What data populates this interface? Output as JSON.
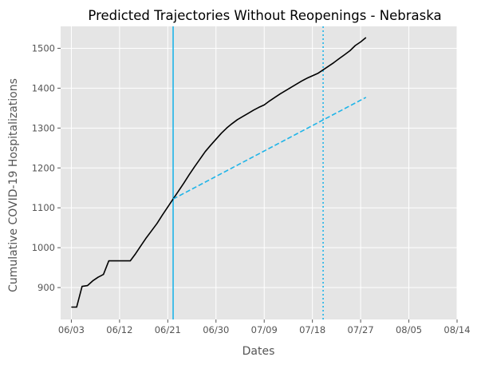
{
  "chart_data": {
    "type": "line",
    "title": "Predicted Trajectories Without Reopenings - Nebraska",
    "xlabel": "Dates",
    "ylabel": "Cumulative COVID-19 Hospitalizations",
    "x_tick_labels": [
      "06/03",
      "06/12",
      "06/21",
      "06/30",
      "07/09",
      "07/18",
      "07/27",
      "08/05",
      "08/14"
    ],
    "x_tick_days": [
      0,
      9,
      18,
      27,
      36,
      45,
      54,
      63,
      72
    ],
    "x_range_days": [
      -2,
      72
    ],
    "y_ticks": [
      900,
      1000,
      1100,
      1200,
      1300,
      1400,
      1500
    ],
    "y_range": [
      820,
      1555
    ],
    "grid": true,
    "colors": {
      "background": "#e5e5e5",
      "grid": "#ffffff",
      "actual": "#000000",
      "predicted": "#1fb4e8",
      "vlines": "#1fb4e8"
    },
    "series": [
      {
        "style": "solid",
        "color": "#000000",
        "points": [
          [
            0,
            851
          ],
          [
            1,
            851
          ],
          [
            2,
            903
          ],
          [
            3,
            905
          ],
          [
            4,
            917
          ],
          [
            5,
            926
          ],
          [
            6,
            933
          ],
          [
            7,
            967
          ],
          [
            8,
            967
          ],
          [
            9,
            967
          ],
          [
            10,
            967
          ],
          [
            11,
            967
          ],
          [
            12,
            985
          ],
          [
            13,
            1005
          ],
          [
            14,
            1025
          ],
          [
            15,
            1043
          ],
          [
            16,
            1061
          ],
          [
            17,
            1082
          ],
          [
            18,
            1102
          ],
          [
            19,
            1122
          ],
          [
            20,
            1142
          ],
          [
            21,
            1162
          ],
          [
            22,
            1183
          ],
          [
            23,
            1203
          ],
          [
            24,
            1222
          ],
          [
            25,
            1241
          ],
          [
            26,
            1257
          ],
          [
            27,
            1272
          ],
          [
            28,
            1287
          ],
          [
            29,
            1300
          ],
          [
            30,
            1311
          ],
          [
            31,
            1321
          ],
          [
            32,
            1329
          ],
          [
            33,
            1337
          ],
          [
            34,
            1345
          ],
          [
            35,
            1352
          ],
          [
            36,
            1358
          ],
          [
            37,
            1368
          ],
          [
            38,
            1377
          ],
          [
            39,
            1386
          ],
          [
            40,
            1394
          ],
          [
            41,
            1402
          ],
          [
            42,
            1410
          ],
          [
            43,
            1418
          ],
          [
            44,
            1425
          ],
          [
            45,
            1431
          ],
          [
            46,
            1437
          ],
          [
            47,
            1446
          ],
          [
            48,
            1455
          ],
          [
            49,
            1464
          ],
          [
            50,
            1474
          ],
          [
            51,
            1484
          ],
          [
            52,
            1494
          ],
          [
            53,
            1507
          ],
          [
            54,
            1516
          ],
          [
            55,
            1527
          ]
        ]
      },
      {
        "style": "dashed",
        "color": "#1fb4e8",
        "points": [
          [
            19,
            1122
          ],
          [
            55,
            1377
          ]
        ]
      }
    ],
    "vertical_lines": [
      {
        "x": 19,
        "style": "solid",
        "color": "#1fb4e8"
      },
      {
        "x": 47,
        "style": "dotted",
        "color": "#1fb4e8"
      }
    ]
  }
}
